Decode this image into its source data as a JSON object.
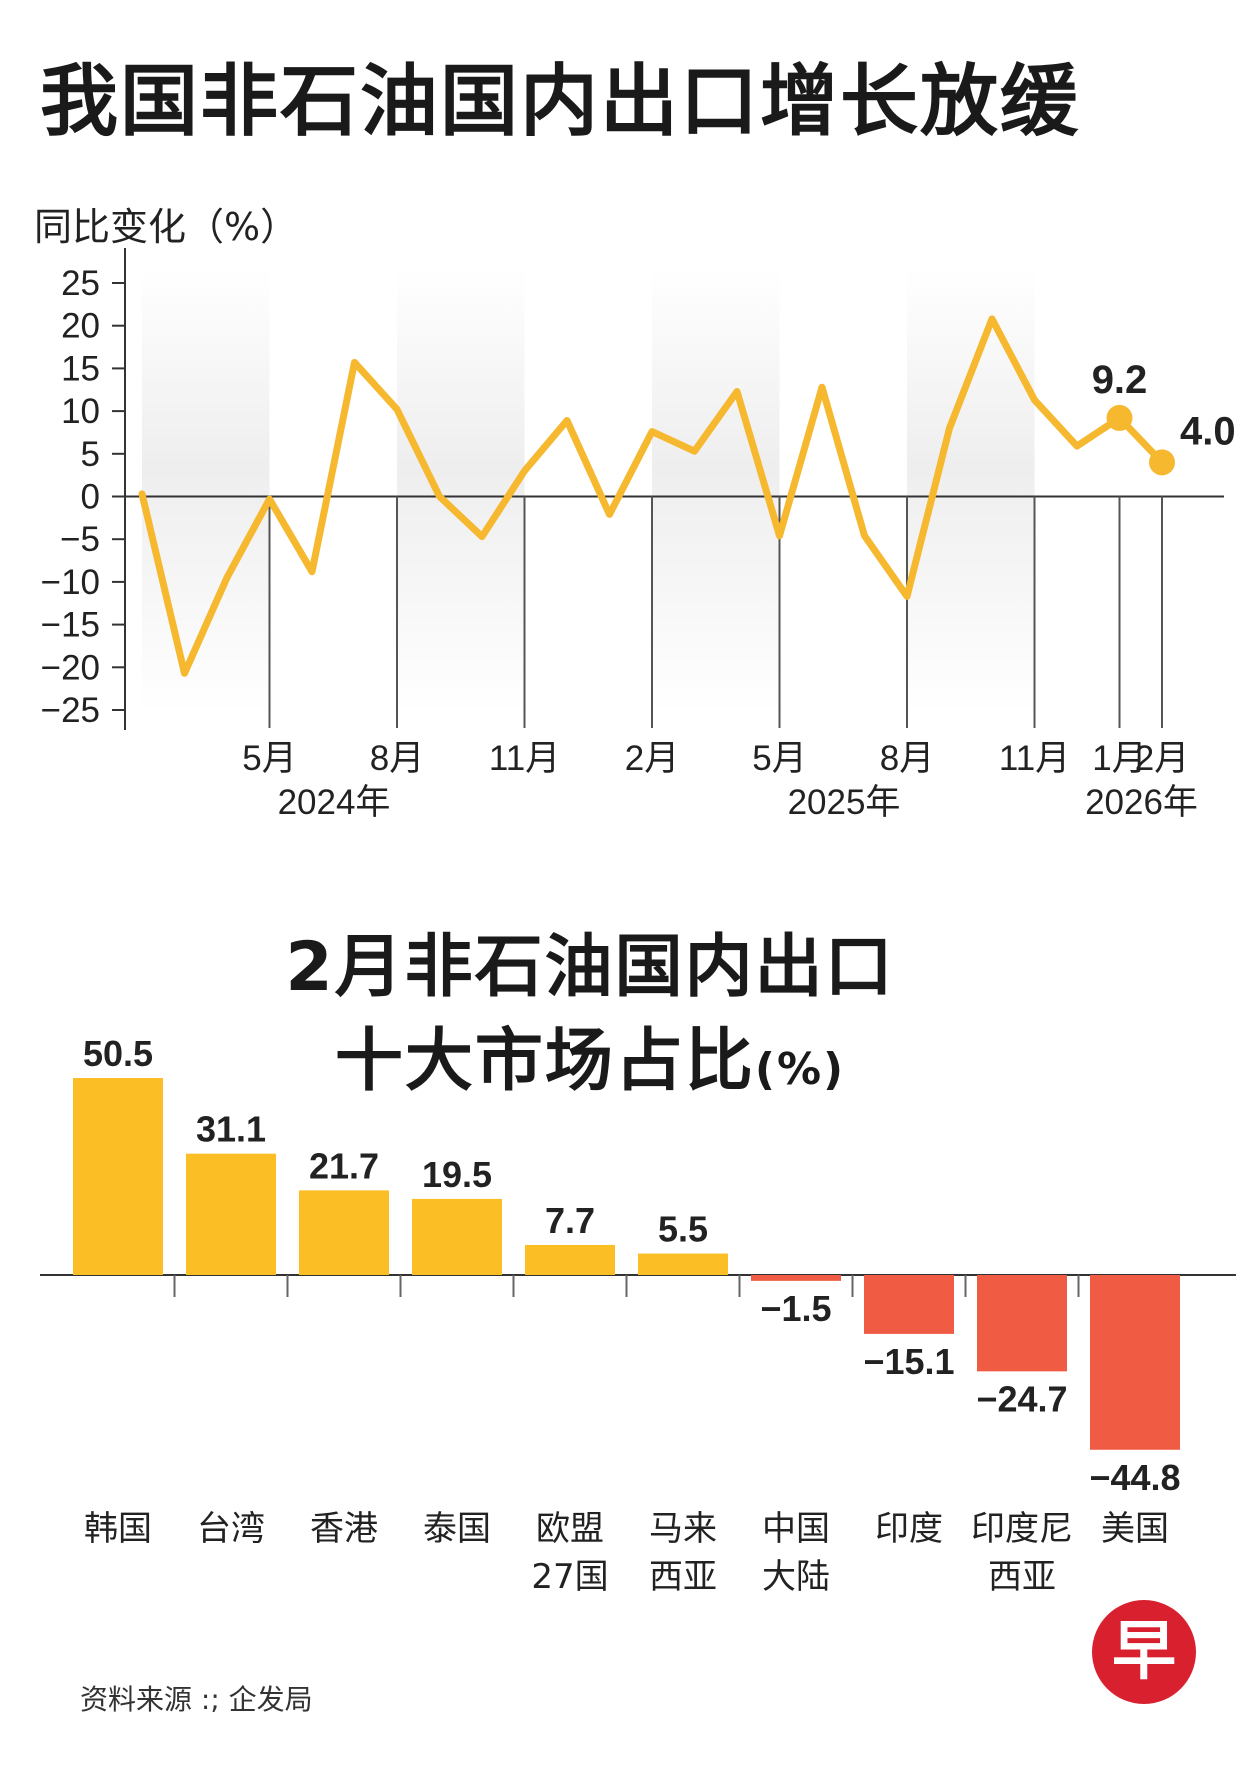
{
  "titles": {
    "main": "我国非石油国内出口增长放缓",
    "bar_line1": "2月非石油国内出口",
    "bar_line2": "十大市场占比",
    "bar_unit": "(%)"
  },
  "source": "资料来源 :; 企发局",
  "logo": "早",
  "colors": {
    "line": "#f5b82e",
    "positive_bar": "#fbbe24",
    "negative_bar": "#ef5b43",
    "band": "#eeeeee",
    "logo": "#d9202f"
  },
  "chart_data": [
    {
      "type": "line",
      "title": "我国非石油国内出口增长放缓",
      "ylabel": "同比变化（%）",
      "ylim": [
        -25,
        25
      ],
      "yticks": [
        25,
        20,
        15,
        10,
        5,
        0,
        -5,
        -10,
        -15,
        -20,
        -25
      ],
      "x": [
        "2024-02",
        "2024-03",
        "2024-04",
        "2024-05",
        "2024-06",
        "2024-07",
        "2024-08",
        "2024-09",
        "2024-10",
        "2024-11",
        "2024-12",
        "2025-01",
        "2025-02",
        "2025-03",
        "2025-04",
        "2025-05",
        "2025-06",
        "2025-07",
        "2025-08",
        "2025-09",
        "2025-10",
        "2025-11",
        "2025-12",
        "2026-01",
        "2026-02"
      ],
      "series": [
        {
          "values": [
            0.3,
            -20.7,
            -9.5,
            -0.3,
            -8.8,
            15.7,
            10.2,
            0.0,
            -4.7,
            3.0,
            8.9,
            -2.1,
            7.6,
            5.3,
            12.3,
            -4.6,
            12.8,
            -4.6,
            -11.7,
            8.0,
            20.8,
            11.3,
            5.9,
            9.2,
            4.0
          ]
        }
      ],
      "x_tick_labels": [
        {
          "x": "2024-05",
          "label": "5月"
        },
        {
          "x": "2024-08",
          "label": "8月"
        },
        {
          "x": "2024-11",
          "label": "11月"
        },
        {
          "x": "2025-02",
          "label": "2月"
        },
        {
          "x": "2025-05",
          "label": "5月"
        },
        {
          "x": "2025-08",
          "label": "8月"
        },
        {
          "x": "2025-11",
          "label": "11月"
        },
        {
          "x": "2026-01",
          "label": "1月"
        },
        {
          "x": "2026-02",
          "label": "2月"
        }
      ],
      "year_labels": [
        {
          "x": "2024-06",
          "label": "2024年"
        },
        {
          "x": "2025-06",
          "label": "2025年"
        },
        {
          "x": "2026-01",
          "label": "2026年"
        }
      ],
      "shaded_bands": [
        [
          "2024-02",
          "2024-05"
        ],
        [
          "2024-08",
          "2024-11"
        ],
        [
          "2025-02",
          "2025-05"
        ],
        [
          "2025-08",
          "2025-11"
        ]
      ],
      "annotations": [
        {
          "x": "2026-01",
          "value": 9.2,
          "label": "9.2"
        },
        {
          "x": "2026-02",
          "value": 4.0,
          "label": "4.0"
        }
      ],
      "grid": false
    },
    {
      "type": "bar",
      "title": "2月非石油国内出口十大市场占比(%)",
      "categories": [
        "韩国",
        "台湾",
        "香港",
        "泰国",
        "欧盟\n27国",
        "马来\n西亚",
        "中国\n大陆",
        "印度",
        "印度尼\n西亚",
        "美国"
      ],
      "values": [
        50.5,
        31.1,
        21.7,
        19.5,
        7.7,
        5.5,
        -1.5,
        -15.1,
        -24.7,
        -44.8
      ],
      "value_labels": [
        "50.5",
        "31.1",
        "21.7",
        "19.5",
        "7.7",
        "5.5",
        "−1.5",
        "−15.1",
        "−24.7",
        "−44.8"
      ],
      "grid": false
    }
  ]
}
